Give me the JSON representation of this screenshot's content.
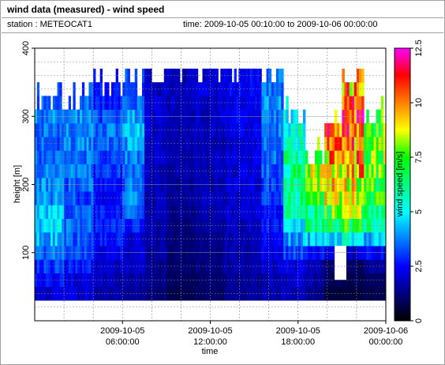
{
  "header": {
    "title": "wind data (measured) - wind speed",
    "station": "station : METEOCAT1",
    "time_range": "time: 2009-10-05 00:10:00 to 2009-10-06 00:00:00"
  },
  "chart_data": {
    "type": "heatmap",
    "title": "wind data (measured) - wind speed",
    "xlabel": "time",
    "ylabel": "height [m]",
    "colorbar_label": "wind speed [m/s]",
    "x_ticks": [
      {
        "hour": 6,
        "line1": "2009-10-05",
        "line2": "06:00:00"
      },
      {
        "hour": 12,
        "line1": "2009-10-05",
        "line2": "12:00:00"
      },
      {
        "hour": 18,
        "line1": "2009-10-05",
        "line2": "18:00:00"
      },
      {
        "hour": 24,
        "line1": "2009-10-06",
        "line2": "00:00:00"
      }
    ],
    "xlim_hours": [
      0,
      24
    ],
    "y_ticks": [
      100,
      200,
      300,
      400
    ],
    "ylim": [
      0,
      400
    ],
    "colorbar_ticks": [
      0,
      2.5,
      5,
      7.5,
      10,
      12.5
    ],
    "colorbar_range": [
      0,
      12.5
    ],
    "grid": true,
    "colormap": [
      "#000000",
      "#000080",
      "#0000ff",
      "#0080ff",
      "#00ffff",
      "#00ff80",
      "#00ff00",
      "#ffff00",
      "#ff8000",
      "#ff0000",
      "#ff00ff"
    ],
    "heights": [
      40,
      60,
      80,
      100,
      120,
      140,
      160,
      180,
      200,
      220,
      240,
      260,
      280,
      300,
      320,
      340,
      360
    ],
    "segments": [
      {
        "t0": 0.0,
        "t1": 2.0,
        "top": 330,
        "speeds": [
          2.0,
          2.5,
          3.0,
          3.6,
          4.2,
          4.6,
          4.4,
          4.0,
          3.8,
          3.6,
          3.4,
          3.4,
          3.6,
          3.8,
          3.5,
          3.0,
          2.6
        ]
      },
      {
        "t0": 2.0,
        "t1": 4.0,
        "top": 320,
        "speeds": [
          2.0,
          2.2,
          2.6,
          3.0,
          3.4,
          3.6,
          3.4,
          3.2,
          3.4,
          3.6,
          3.6,
          3.8,
          4.0,
          3.8,
          3.6,
          3.2,
          3.0
        ]
      },
      {
        "t0": 4.0,
        "t1": 6.0,
        "top": 340,
        "speeds": [
          1.6,
          1.8,
          2.0,
          2.4,
          2.6,
          2.8,
          2.6,
          2.4,
          2.6,
          3.0,
          3.2,
          3.4,
          3.6,
          3.2,
          2.8,
          2.6,
          2.4
        ]
      },
      {
        "t0": 6.0,
        "t1": 7.5,
        "top": 350,
        "speeds": [
          1.4,
          1.6,
          1.8,
          2.0,
          2.2,
          2.8,
          3.4,
          3.8,
          3.6,
          3.4,
          3.6,
          4.0,
          4.4,
          4.0,
          3.6,
          3.2,
          3.0
        ]
      },
      {
        "t0": 7.5,
        "t1": 9.0,
        "top": 360,
        "speeds": [
          1.2,
          1.3,
          1.4,
          1.5,
          1.6,
          1.6,
          1.7,
          1.8,
          1.8,
          1.8,
          1.9,
          1.9,
          2.0,
          2.0,
          2.0,
          1.9,
          1.8
        ]
      },
      {
        "t0": 9.0,
        "t1": 11.0,
        "top": 360,
        "speeds": [
          0.8,
          0.9,
          1.0,
          1.1,
          1.2,
          1.3,
          1.4,
          1.5,
          1.5,
          1.6,
          1.6,
          1.7,
          1.7,
          1.8,
          1.8,
          1.8,
          1.8
        ]
      },
      {
        "t0": 11.0,
        "t1": 13.0,
        "top": 360,
        "speeds": [
          1.0,
          1.1,
          1.2,
          1.3,
          1.4,
          1.5,
          1.6,
          1.7,
          1.7,
          1.8,
          1.8,
          1.8,
          1.9,
          1.9,
          1.9,
          2.0,
          2.0
        ]
      },
      {
        "t0": 13.0,
        "t1": 15.5,
        "top": 360,
        "speeds": [
          1.4,
          1.5,
          1.6,
          1.7,
          1.8,
          1.9,
          2.0,
          2.0,
          2.1,
          2.1,
          2.2,
          2.2,
          2.2,
          2.3,
          2.3,
          2.4,
          2.4
        ]
      },
      {
        "t0": 15.5,
        "t1": 17.0,
        "top": 360,
        "speeds": [
          1.6,
          1.8,
          2.0,
          2.2,
          2.4,
          2.6,
          2.8,
          3.0,
          3.2,
          3.4,
          3.6,
          3.6,
          3.8,
          3.8,
          3.8,
          3.6,
          3.6
        ]
      },
      {
        "t0": 17.0,
        "t1": 18.5,
        "top": 300,
        "speeds": [
          1.8,
          2.0,
          2.2,
          3.0,
          4.0,
          5.0,
          5.6,
          6.2,
          6.6,
          6.4,
          6.0,
          5.6,
          5.4,
          5.0,
          4.6,
          4.0,
          3.6
        ]
      },
      {
        "t0": 18.5,
        "t1": 19.8,
        "top": 240,
        "speeds": [
          1.4,
          1.6,
          1.8,
          2.6,
          4.4,
          6.0,
          6.6,
          7.2,
          7.8,
          8.2,
          8.0,
          7.6,
          7.2,
          6.8,
          6.4,
          6.0,
          5.6
        ]
      },
      {
        "t0": 19.8,
        "t1": 21.0,
        "top": 280,
        "speeds": [
          0.6,
          0.8,
          1.0,
          2.2,
          5.0,
          6.8,
          7.6,
          8.4,
          8.8,
          9.2,
          9.6,
          10.0,
          10.4,
          10.2,
          9.8,
          9.4,
          9.0
        ]
      },
      {
        "t0": 21.0,
        "t1": 22.5,
        "top": 350,
        "speeds": [
          0.6,
          0.8,
          1.0,
          2.0,
          5.2,
          7.0,
          7.8,
          8.6,
          9.0,
          9.4,
          9.8,
          10.2,
          10.6,
          10.8,
          10.4,
          9.8,
          9.2
        ]
      },
      {
        "t0": 22.5,
        "t1": 24.0,
        "top": 300,
        "speeds": [
          0.8,
          1.0,
          1.4,
          2.4,
          4.4,
          5.8,
          6.4,
          7.0,
          7.4,
          7.6,
          7.8,
          7.8,
          7.6,
          7.4,
          7.0,
          6.6,
          6.2
        ]
      }
    ],
    "white_gap": {
      "t0": 20.5,
      "t1": 21.3,
      "h0": 60,
      "h1": 110
    }
  }
}
